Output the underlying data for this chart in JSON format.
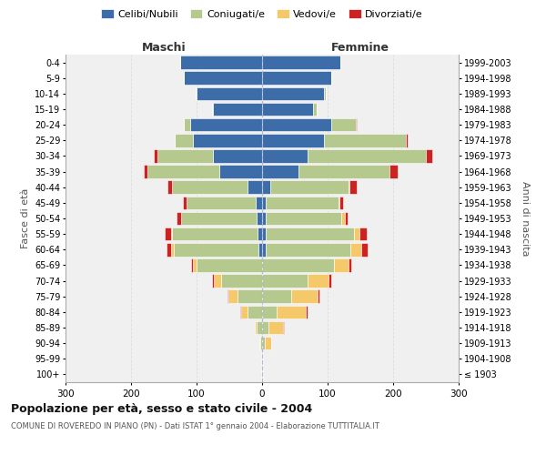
{
  "age_groups": [
    "100+",
    "95-99",
    "90-94",
    "85-89",
    "80-84",
    "75-79",
    "70-74",
    "65-69",
    "60-64",
    "55-59",
    "50-54",
    "45-49",
    "40-44",
    "35-39",
    "30-34",
    "25-29",
    "20-24",
    "15-19",
    "10-14",
    "5-9",
    "0-4"
  ],
  "birth_years": [
    "≤ 1903",
    "1904-1908",
    "1909-1913",
    "1914-1918",
    "1919-1923",
    "1924-1928",
    "1929-1933",
    "1934-1938",
    "1939-1943",
    "1944-1948",
    "1949-1953",
    "1954-1958",
    "1959-1963",
    "1964-1968",
    "1969-1973",
    "1974-1978",
    "1979-1983",
    "1984-1988",
    "1989-1993",
    "1994-1998",
    "1999-2003"
  ],
  "maschi": {
    "celibi": [
      1,
      0,
      0,
      0,
      0,
      0,
      0,
      0,
      5,
      7,
      8,
      10,
      22,
      65,
      75,
      105,
      110,
      75,
      100,
      120,
      125
    ],
    "coniugati": [
      1,
      1,
      3,
      8,
      22,
      38,
      62,
      100,
      130,
      130,
      115,
      105,
      115,
      110,
      85,
      28,
      10,
      2,
      1,
      0,
      0
    ],
    "vedovi": [
      0,
      0,
      1,
      3,
      10,
      14,
      12,
      6,
      4,
      2,
      1,
      0,
      0,
      0,
      0,
      0,
      0,
      0,
      0,
      0,
      0
    ],
    "divorziati": [
      0,
      0,
      0,
      0,
      1,
      1,
      2,
      2,
      7,
      9,
      7,
      6,
      8,
      6,
      5,
      1,
      0,
      0,
      0,
      0,
      0
    ]
  },
  "femmine": {
    "nubili": [
      0,
      0,
      0,
      0,
      0,
      0,
      0,
      0,
      5,
      5,
      6,
      6,
      12,
      55,
      70,
      95,
      105,
      78,
      95,
      105,
      120
    ],
    "coniugate": [
      1,
      1,
      4,
      10,
      22,
      45,
      70,
      110,
      130,
      135,
      115,
      110,
      120,
      140,
      180,
      125,
      38,
      6,
      2,
      1,
      0
    ],
    "vedove": [
      0,
      1,
      10,
      22,
      45,
      40,
      32,
      22,
      16,
      8,
      5,
      2,
      1,
      0,
      0,
      0,
      0,
      0,
      0,
      0,
      0
    ],
    "divorziate": [
      0,
      0,
      0,
      1,
      2,
      2,
      3,
      4,
      10,
      12,
      5,
      6,
      12,
      12,
      10,
      2,
      1,
      0,
      0,
      0,
      0
    ]
  },
  "colors": {
    "celibi": "#3d6da8",
    "coniugati": "#b5c98e",
    "vedovi": "#f5c96a",
    "divorziati": "#cc2222"
  },
  "title": "Popolazione per età, sesso e stato civile - 2004",
  "subtitle": "COMUNE DI ROVEREDO IN PIANO (PN) - Dati ISTAT 1° gennaio 2004 - Elaborazione TUTTITALIA.IT",
  "xlabel_left": "Maschi",
  "xlabel_right": "Femmine",
  "ylabel_left": "Fasce di età",
  "ylabel_right": "Anni di nascita",
  "xlim": 300,
  "background_color": "#ffffff",
  "plot_bg": "#f0f0f0",
  "grid_color": "#dddddd"
}
